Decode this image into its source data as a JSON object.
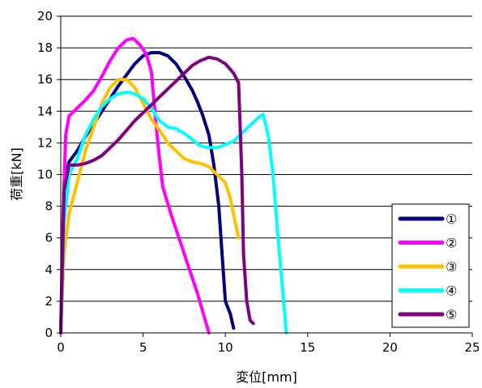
{
  "chart_data": {
    "type": "line",
    "title": "",
    "xlabel": "変位[mm]",
    "ylabel": "荷重[kN]",
    "xlim": [
      0,
      25
    ],
    "ylim": [
      0,
      20
    ],
    "xticks": [
      0,
      5,
      10,
      15,
      20,
      25
    ],
    "yticks": [
      0,
      2,
      4,
      6,
      8,
      10,
      12,
      14,
      16,
      18,
      20
    ],
    "grid": "horizontal",
    "legend_position": "bottom-right",
    "series": [
      {
        "name": "①",
        "color": "#000080",
        "points": [
          [
            0,
            0
          ],
          [
            0.2,
            9.5
          ],
          [
            0.5,
            10.8
          ],
          [
            1,
            11.5
          ],
          [
            1.5,
            12.4
          ],
          [
            2,
            13.2
          ],
          [
            2.5,
            14
          ],
          [
            3,
            14.8
          ],
          [
            3.5,
            15.6
          ],
          [
            4,
            16.3
          ],
          [
            4.5,
            17
          ],
          [
            5,
            17.5
          ],
          [
            5.5,
            17.7
          ],
          [
            6,
            17.7
          ],
          [
            6.5,
            17.5
          ],
          [
            7,
            17
          ],
          [
            7.5,
            16.2
          ],
          [
            8,
            15.3
          ],
          [
            8.3,
            14.6
          ],
          [
            8.6,
            13.8
          ],
          [
            9,
            12.5
          ],
          [
            9.3,
            10.6
          ],
          [
            9.6,
            8
          ],
          [
            9.8,
            5
          ],
          [
            10,
            2
          ],
          [
            10.3,
            1.2
          ],
          [
            10.5,
            0.3
          ]
        ]
      },
      {
        "name": "②",
        "color": "#ff00ff",
        "points": [
          [
            0,
            0
          ],
          [
            0.1,
            6
          ],
          [
            0.3,
            12.5
          ],
          [
            0.5,
            13.7
          ],
          [
            1,
            14.2
          ],
          [
            1.5,
            14.7
          ],
          [
            2,
            15.3
          ],
          [
            2.5,
            16.2
          ],
          [
            3,
            17.2
          ],
          [
            3.5,
            18
          ],
          [
            4,
            18.5
          ],
          [
            4.4,
            18.6
          ],
          [
            4.8,
            18.2
          ],
          [
            5.2,
            17.6
          ],
          [
            5.5,
            16.5
          ],
          [
            5.8,
            13
          ],
          [
            6,
            11
          ],
          [
            6.2,
            9.2
          ],
          [
            6.7,
            7.5
          ],
          [
            7.5,
            5
          ],
          [
            8.3,
            2.5
          ],
          [
            9,
            0
          ]
        ]
      },
      {
        "name": "③",
        "color": "#ffc000",
        "points": [
          [
            0,
            0
          ],
          [
            0.2,
            5
          ],
          [
            0.5,
            7.5
          ],
          [
            1,
            9.5
          ],
          [
            1.5,
            11.5
          ],
          [
            2,
            13
          ],
          [
            2.5,
            14.5
          ],
          [
            3,
            15.5
          ],
          [
            3.5,
            16
          ],
          [
            4,
            16
          ],
          [
            4.5,
            15.5
          ],
          [
            5,
            14.5
          ],
          [
            5.5,
            13.5
          ],
          [
            6,
            12.8
          ],
          [
            6.5,
            12
          ],
          [
            7,
            11.5
          ],
          [
            7.5,
            11
          ],
          [
            8,
            10.8
          ],
          [
            8.5,
            10.7
          ],
          [
            9,
            10.5
          ],
          [
            9.5,
            10
          ],
          [
            10,
            9.5
          ],
          [
            10.3,
            8.5
          ],
          [
            10.6,
            7
          ],
          [
            10.8,
            6
          ]
        ]
      },
      {
        "name": "④",
        "color": "#00ffff",
        "points": [
          [
            0,
            0
          ],
          [
            0.2,
            7
          ],
          [
            0.5,
            10
          ],
          [
            1,
            11
          ],
          [
            1.5,
            12.5
          ],
          [
            2,
            13.5
          ],
          [
            2.5,
            14.3
          ],
          [
            3,
            14.8
          ],
          [
            3.5,
            15.1
          ],
          [
            4,
            15.2
          ],
          [
            4.5,
            15.1
          ],
          [
            5,
            14.8
          ],
          [
            5.5,
            14.2
          ],
          [
            6,
            13.4
          ],
          [
            6.5,
            13
          ],
          [
            7,
            12.9
          ],
          [
            7.5,
            12.6
          ],
          [
            8,
            12.2
          ],
          [
            8.5,
            11.8
          ],
          [
            9,
            11.7
          ],
          [
            9.5,
            11.7
          ],
          [
            10,
            11.9
          ],
          [
            10.5,
            12.1
          ],
          [
            11,
            12.6
          ],
          [
            11.5,
            13.1
          ],
          [
            12,
            13.6
          ],
          [
            12.3,
            13.8
          ],
          [
            12.6,
            12.5
          ],
          [
            12.9,
            10
          ],
          [
            13.2,
            6
          ],
          [
            13.5,
            2.5
          ],
          [
            13.7,
            0
          ]
        ]
      },
      {
        "name": "⑤",
        "color": "#800080",
        "points": [
          [
            0,
            0
          ],
          [
            0.2,
            9
          ],
          [
            0.5,
            10.6
          ],
          [
            1,
            10.6
          ],
          [
            1.5,
            10.7
          ],
          [
            2,
            10.9
          ],
          [
            2.5,
            11.2
          ],
          [
            3,
            11.7
          ],
          [
            3.5,
            12.2
          ],
          [
            4,
            12.8
          ],
          [
            4.5,
            13.4
          ],
          [
            5,
            13.9
          ],
          [
            5.5,
            14.4
          ],
          [
            6,
            14.9
          ],
          [
            6.5,
            15.4
          ],
          [
            7,
            15.9
          ],
          [
            7.5,
            16.4
          ],
          [
            8,
            16.9
          ],
          [
            8.5,
            17.2
          ],
          [
            9,
            17.4
          ],
          [
            9.5,
            17.3
          ],
          [
            10,
            17
          ],
          [
            10.5,
            16.4
          ],
          [
            10.8,
            15.8
          ],
          [
            10.9,
            13
          ],
          [
            11,
            10
          ],
          [
            11.1,
            5
          ],
          [
            11.3,
            2
          ],
          [
            11.5,
            0.8
          ],
          [
            11.7,
            0.6
          ]
        ]
      }
    ]
  }
}
